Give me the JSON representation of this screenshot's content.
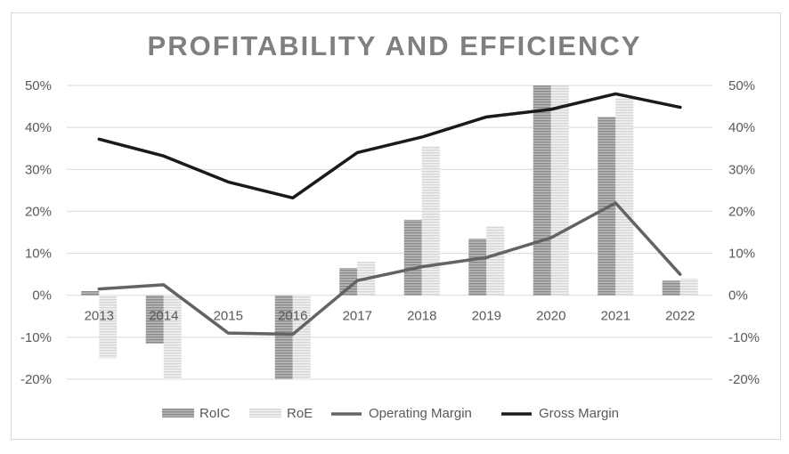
{
  "chart_data": {
    "type": "bar",
    "title": "PROFITABILITY AND EFFICIENCY",
    "categories": [
      "2013",
      "2014",
      "2015",
      "2016",
      "2017",
      "2018",
      "2019",
      "2020",
      "2021",
      "2022"
    ],
    "ylim": [
      -20,
      50
    ],
    "yticks": [
      "-20%",
      "-10%",
      "0%",
      "10%",
      "20%",
      "30%",
      "40%",
      "50%"
    ],
    "ytick_values": [
      -20,
      -10,
      0,
      10,
      20,
      30,
      40,
      50
    ],
    "y2ticks": [
      "-20%",
      "-10%",
      "0%",
      "10%",
      "20%",
      "30%",
      "40%",
      "50%"
    ],
    "grid": true,
    "legend_position": "bottom",
    "series": [
      {
        "name": "RoIC",
        "type": "bar",
        "color": "#9a9a9a",
        "values": [
          1,
          -11.5,
          0,
          -20,
          6.5,
          18,
          13.5,
          50,
          42.5,
          3.5
        ]
      },
      {
        "name": "RoE",
        "type": "bar",
        "color": "#e3e3e3",
        "values": [
          -15,
          -20,
          0,
          -20,
          8,
          35.5,
          16.5,
          50,
          47,
          4
        ]
      },
      {
        "name": "Operating Margin",
        "type": "line",
        "color": "#636363",
        "values": [
          1.5,
          2.5,
          -9,
          -9.3,
          3.5,
          6.8,
          9,
          13.7,
          22,
          5
        ]
      },
      {
        "name": "Gross Margin",
        "type": "line",
        "color": "#1a1a1a",
        "values": [
          37.2,
          33.2,
          27,
          23.2,
          34,
          37.7,
          42.5,
          44.3,
          48,
          44.8
        ]
      }
    ]
  }
}
